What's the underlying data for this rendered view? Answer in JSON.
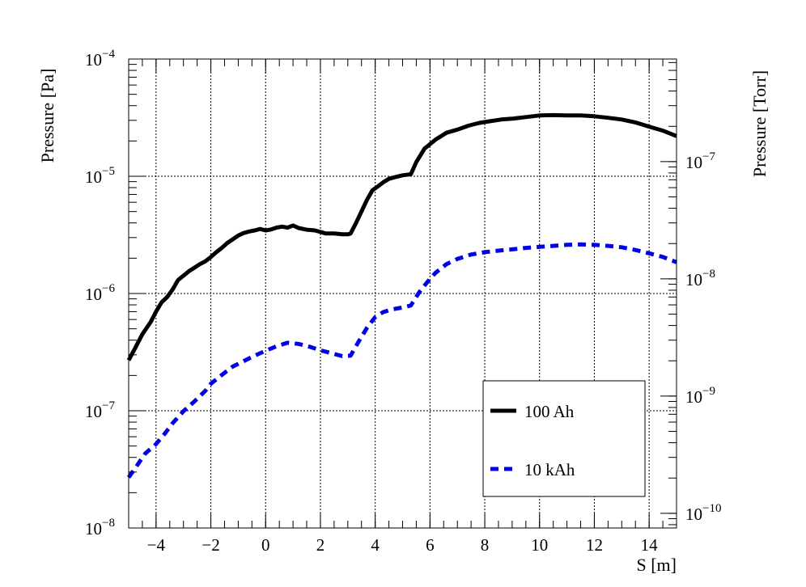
{
  "chart_data": {
    "type": "line",
    "title": "",
    "xlabel": "S [m]",
    "ylabel": "Pressure [Pa]",
    "ylabel_right": "Pressure [Torr]",
    "xlim": [
      -5,
      15
    ],
    "ylim": [
      1e-08,
      0.0001
    ],
    "y_scale": "log",
    "y2lim_torr": [
      7.5e-11,
      7.5e-07
    ],
    "grid": true,
    "legend_position": "bottom-right",
    "x_tick_labels": [
      "−4",
      "−2",
      "0",
      "2",
      "4",
      "6",
      "8",
      "10",
      "12",
      "14"
    ],
    "x_ticks": [
      -4,
      -2,
      0,
      2,
      4,
      6,
      8,
      10,
      12,
      14
    ],
    "y_ticks": [
      {
        "value": 1e-08,
        "base": "10",
        "exp": "−8"
      },
      {
        "value": 1e-07,
        "base": "10",
        "exp": "−7"
      },
      {
        "value": 1e-06,
        "base": "10",
        "exp": "−6"
      },
      {
        "value": 1e-05,
        "base": "10",
        "exp": "−5"
      },
      {
        "value": 0.0001,
        "base": "10",
        "exp": "−4"
      }
    ],
    "y2_ticks": [
      {
        "value": 1e-10,
        "base": "10",
        "exp": "−10"
      },
      {
        "value": 1e-09,
        "base": "10",
        "exp": "−9"
      },
      {
        "value": 1e-08,
        "base": "10",
        "exp": "−8"
      },
      {
        "value": 1e-07,
        "base": "10",
        "exp": "−7"
      }
    ],
    "series": [
      {
        "name": "100 Ah",
        "color": "#000000",
        "style": "solid",
        "x": [
          -5,
          -4.8,
          -4.5,
          -4.2,
          -4,
          -3.8,
          -3.6,
          -3.4,
          -3.2,
          -3,
          -2.8,
          -2.6,
          -2.4,
          -2.2,
          -2,
          -1.8,
          -1.6,
          -1.4,
          -1.2,
          -1,
          -0.8,
          -0.6,
          -0.4,
          -0.2,
          0,
          0.2,
          0.4,
          0.6,
          0.8,
          1,
          1.2,
          1.5,
          1.8,
          2,
          2.2,
          2.5,
          2.8,
          3,
          3.1,
          3.3,
          3.5,
          3.7,
          3.9,
          4.1,
          4.3,
          4.5,
          4.7,
          5,
          5.3,
          5.5,
          5.8,
          6.2,
          6.6,
          7,
          7.4,
          7.8,
          8.2,
          8.6,
          9,
          9.5,
          10,
          10.5,
          11,
          11.5,
          12,
          12.5,
          13,
          13.5,
          14,
          14.5,
          15
        ],
        "values": [
          2.7e-07,
          3.3e-07,
          4.5e-07,
          5.7e-07,
          7e-07,
          8.4e-07,
          9.3e-07,
          1.08e-06,
          1.3e-06,
          1.42e-06,
          1.55e-06,
          1.66e-06,
          1.78e-06,
          1.88e-06,
          2.05e-06,
          2.25e-06,
          2.45e-06,
          2.7e-06,
          2.9e-06,
          3.12e-06,
          3.28e-06,
          3.38e-06,
          3.45e-06,
          3.55e-06,
          3.45e-06,
          3.52e-06,
          3.65e-06,
          3.72e-06,
          3.65e-06,
          3.8e-06,
          3.62e-06,
          3.5e-06,
          3.45e-06,
          3.35e-06,
          3.25e-06,
          3.25e-06,
          3.2e-06,
          3.2e-06,
          3.25e-06,
          4e-06,
          5e-06,
          6.3e-06,
          7.6e-06,
          8.2e-06,
          8.9e-06,
          9.5e-06,
          9.8e-06,
          1.02e-05,
          1.04e-05,
          1.32e-05,
          1.72e-05,
          2.05e-05,
          2.35e-05,
          2.5e-05,
          2.7e-05,
          2.85e-05,
          2.95e-05,
          3.05e-05,
          3.1e-05,
          3.2e-05,
          3.3e-05,
          3.32e-05,
          3.3e-05,
          3.3e-05,
          3.25e-05,
          3.15e-05,
          3.05e-05,
          2.88e-05,
          2.65e-05,
          2.45e-05,
          2.2e-05
        ]
      },
      {
        "name": "10 kAh",
        "color": "#0000e6",
        "style": "dashed",
        "x": [
          -5,
          -4.7,
          -4.4,
          -4,
          -3.7,
          -3.4,
          -3,
          -2.6,
          -2.2,
          -2,
          -1.6,
          -1.2,
          -0.8,
          -0.4,
          0,
          0.4,
          0.8,
          1.2,
          1.6,
          2,
          2.4,
          2.8,
          3.1,
          3.4,
          3.7,
          4,
          4.3,
          4.6,
          5,
          5.3,
          5.6,
          5.9,
          6.2,
          6.6,
          7,
          7.5,
          8,
          8.5,
          9,
          9.5,
          10,
          10.5,
          11,
          11.5,
          12,
          12.5,
          13,
          13.5,
          14,
          14.5,
          15
        ],
        "values": [
          2.7e-08,
          3.4e-08,
          4.3e-08,
          5.2e-08,
          6.3e-08,
          7.8e-08,
          9.9e-08,
          1.2e-07,
          1.48e-07,
          1.7e-07,
          2.02e-07,
          2.38e-07,
          2.65e-07,
          2.95e-07,
          3.25e-07,
          3.55e-07,
          3.8e-07,
          3.72e-07,
          3.52e-07,
          3.28e-07,
          3.1e-07,
          2.92e-07,
          2.95e-07,
          3.9e-07,
          5.1e-07,
          6.3e-07,
          6.95e-07,
          7.3e-07,
          7.6e-07,
          7.9e-07,
          1.02e-06,
          1.25e-06,
          1.5e-06,
          1.78e-06,
          1.97e-06,
          2.15e-06,
          2.25e-06,
          2.32e-06,
          2.38e-06,
          2.45e-06,
          2.5e-06,
          2.55e-06,
          2.6e-06,
          2.62e-06,
          2.6e-06,
          2.55e-06,
          2.48e-06,
          2.35e-06,
          2.2e-06,
          2.05e-06,
          1.85e-06
        ]
      }
    ]
  }
}
